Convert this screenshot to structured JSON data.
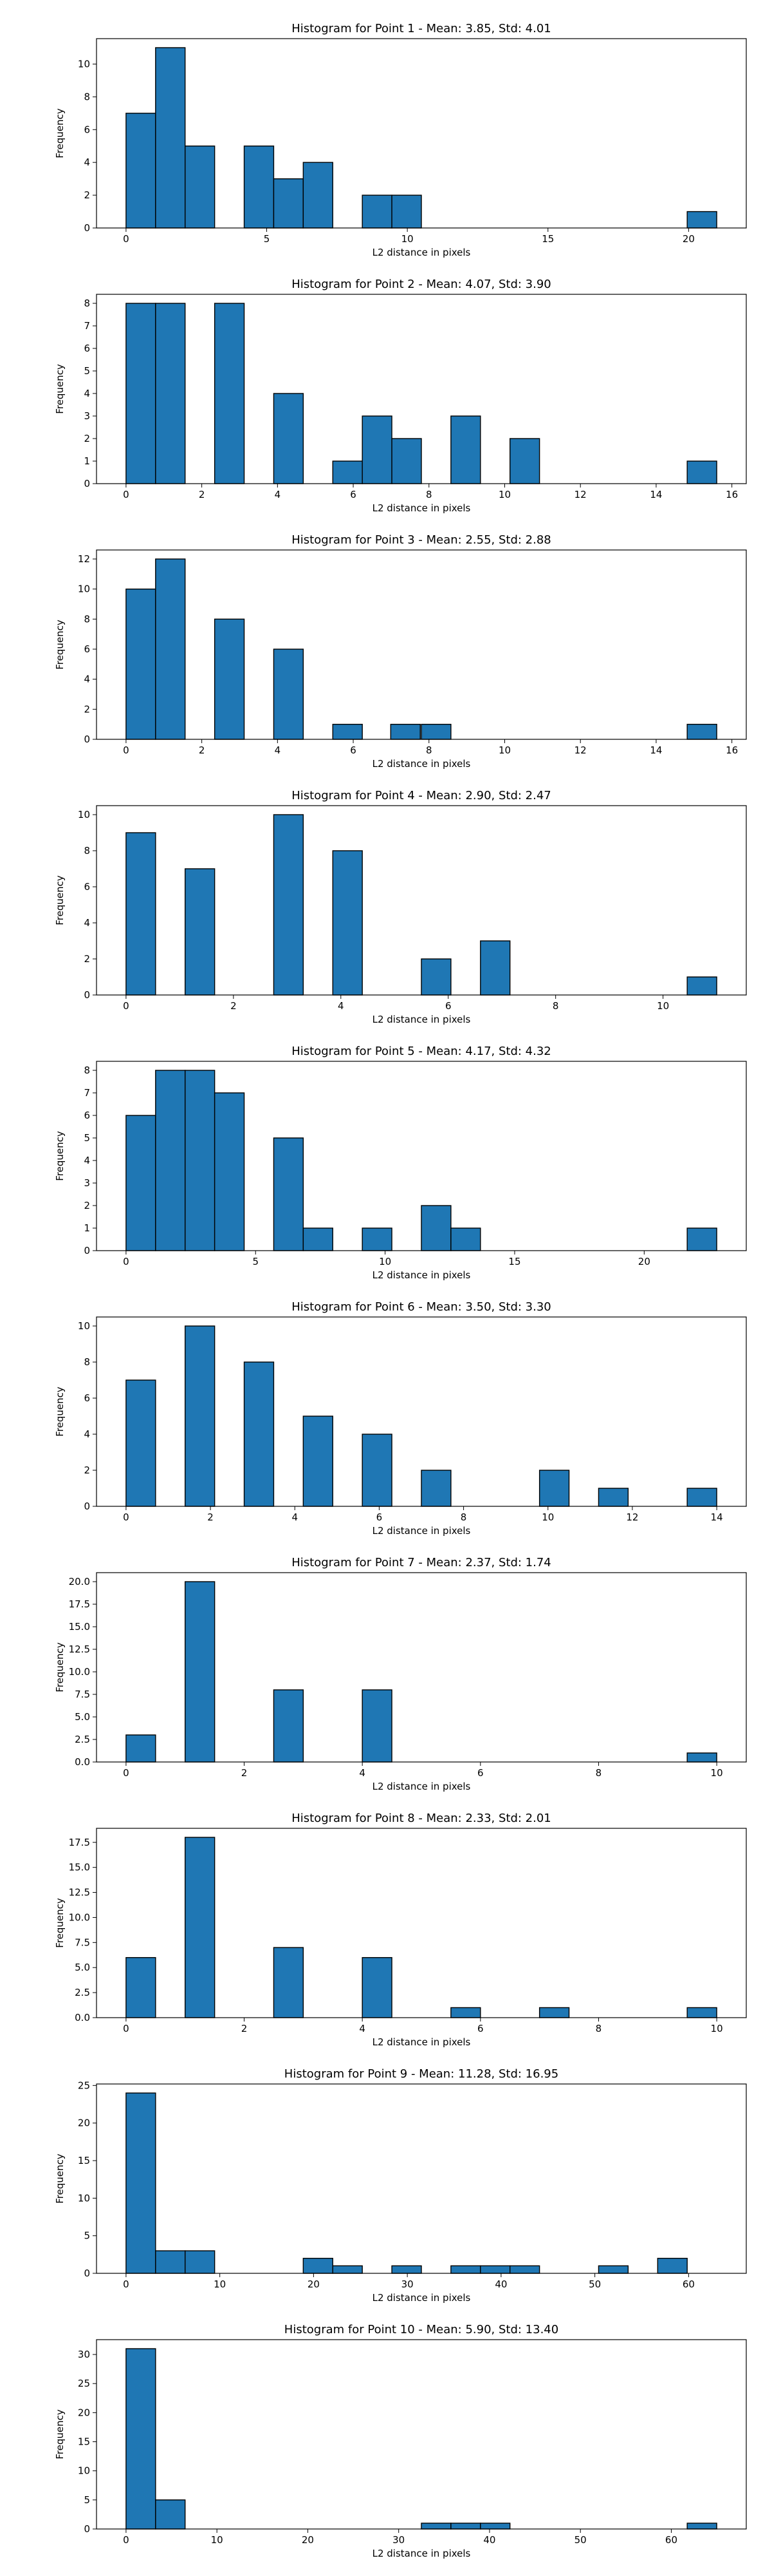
{
  "colors": {
    "bar_fill": "#1f77b4",
    "bar_edge": "#000000",
    "axis": "#000000",
    "background": "#ffffff"
  },
  "chart_data": [
    {
      "type": "bar",
      "title": "Histogram for Point 1 - Mean: 3.85, Std: 4.01",
      "xlabel": "L2 distance in pixels",
      "ylabel": "Frequency",
      "xlim": [
        -1.05,
        22.05
      ],
      "ylim": [
        0,
        11.55
      ],
      "grid": false,
      "bin_width": 1.05,
      "bin_starts": [
        0,
        1.05,
        2.1,
        4.2,
        5.25,
        6.3,
        8.4,
        9.45,
        19.95
      ],
      "values": [
        7,
        11,
        5,
        5,
        3,
        4,
        2,
        2,
        1
      ],
      "x_ticks": [
        0,
        5,
        10,
        15,
        20
      ],
      "x_tick_labels": [
        "0",
        "5",
        "10",
        "15",
        "20"
      ],
      "y_ticks": [
        0,
        2,
        4,
        6,
        8,
        10
      ],
      "y_tick_labels": [
        "0",
        "2",
        "4",
        "6",
        "8",
        "10"
      ]
    },
    {
      "type": "bar",
      "title": "Histogram for Point 2 - Mean: 4.07, Std: 3.90",
      "xlabel": "L2 distance in pixels",
      "ylabel": "Frequency",
      "xlim": [
        -0.78,
        16.38
      ],
      "ylim": [
        0,
        8.4
      ],
      "grid": false,
      "bin_width": 0.78,
      "bin_starts": [
        0,
        0.78,
        2.34,
        3.9,
        5.46,
        6.24,
        7.02,
        8.58,
        10.14,
        14.82
      ],
      "values": [
        8,
        8,
        8,
        4,
        1,
        3,
        2,
        3,
        2,
        1
      ],
      "x_ticks": [
        0,
        2,
        4,
        6,
        8,
        10,
        12,
        14,
        16
      ],
      "x_tick_labels": [
        "0",
        "2",
        "4",
        "6",
        "8",
        "10",
        "12",
        "14",
        "16"
      ],
      "y_ticks": [
        0,
        1,
        2,
        3,
        4,
        5,
        6,
        7,
        8
      ],
      "y_tick_labels": [
        "0",
        "1",
        "2",
        "3",
        "4",
        "5",
        "6",
        "7",
        "8"
      ]
    },
    {
      "type": "bar",
      "title": "Histogram for Point 3 - Mean: 2.55, Std: 2.88",
      "xlabel": "L2 distance in pixels",
      "ylabel": "Frequency",
      "xlim": [
        -0.78,
        16.38
      ],
      "ylim": [
        0,
        12.6
      ],
      "grid": false,
      "bin_width": 0.78,
      "bin_starts": [
        0,
        0.78,
        2.34,
        3.9,
        5.46,
        6.99,
        7.8,
        14.82
      ],
      "values": [
        10,
        12,
        8,
        6,
        1,
        1,
        1,
        1
      ],
      "x_ticks": [
        0,
        2,
        4,
        6,
        8,
        10,
        12,
        14,
        16
      ],
      "x_tick_labels": [
        "0",
        "2",
        "4",
        "6",
        "8",
        "10",
        "12",
        "14",
        "16"
      ],
      "y_ticks": [
        0,
        2,
        4,
        6,
        8,
        10,
        12
      ],
      "y_tick_labels": [
        "0",
        "2",
        "4",
        "6",
        "8",
        "10",
        "12"
      ]
    },
    {
      "type": "bar",
      "title": "Histogram for Point 4 - Mean: 2.90, Std: 2.47",
      "xlabel": "L2 distance in pixels",
      "ylabel": "Frequency",
      "xlim": [
        -0.55,
        11.55
      ],
      "ylim": [
        0,
        10.5
      ],
      "grid": false,
      "bin_width": 0.55,
      "bin_starts": [
        0,
        1.1,
        2.75,
        3.85,
        5.5,
        6.6,
        10.45
      ],
      "values": [
        9,
        7,
        10,
        8,
        2,
        3,
        1
      ],
      "x_ticks": [
        0,
        2,
        4,
        6,
        8,
        10
      ],
      "x_tick_labels": [
        "0",
        "2",
        "4",
        "6",
        "8",
        "10"
      ],
      "y_ticks": [
        0,
        2,
        4,
        6,
        8,
        10
      ],
      "y_tick_labels": [
        "0",
        "2",
        "4",
        "6",
        "8",
        "10"
      ]
    },
    {
      "type": "bar",
      "title": "Histogram for Point 5 - Mean: 4.17, Std: 4.32",
      "xlabel": "L2 distance in pixels",
      "ylabel": "Frequency",
      "xlim": [
        -1.14,
        23.94
      ],
      "ylim": [
        0,
        8.4
      ],
      "grid": false,
      "bin_width": 1.14,
      "bin_starts": [
        0,
        1.14,
        2.28,
        3.42,
        5.7,
        6.84,
        9.12,
        11.4,
        12.54,
        21.66
      ],
      "values": [
        6,
        8,
        8,
        7,
        5,
        1,
        1,
        2,
        1,
        1
      ],
      "x_ticks": [
        0,
        5,
        10,
        15,
        20
      ],
      "x_tick_labels": [
        "0",
        "5",
        "10",
        "15",
        "20"
      ],
      "y_ticks": [
        0,
        1,
        2,
        3,
        4,
        5,
        6,
        7,
        8
      ],
      "y_tick_labels": [
        "0",
        "1",
        "2",
        "3",
        "4",
        "5",
        "6",
        "7",
        "8"
      ]
    },
    {
      "type": "bar",
      "title": "Histogram for Point 6 - Mean: 3.50, Std: 3.30",
      "xlabel": "L2 distance in pixels",
      "ylabel": "Frequency",
      "xlim": [
        -0.7,
        14.7
      ],
      "ylim": [
        0,
        10.5
      ],
      "grid": false,
      "bin_width": 0.7,
      "bin_starts": [
        0,
        1.4,
        2.8,
        4.2,
        5.6,
        7,
        9.8,
        11.2,
        13.3
      ],
      "values": [
        7,
        10,
        8,
        5,
        4,
        2,
        2,
        1,
        1
      ],
      "x_ticks": [
        0,
        2,
        4,
        6,
        8,
        10,
        12,
        14
      ],
      "x_tick_labels": [
        "0",
        "2",
        "4",
        "6",
        "8",
        "10",
        "12",
        "14"
      ],
      "y_ticks": [
        0,
        2,
        4,
        6,
        8,
        10
      ],
      "y_tick_labels": [
        "0",
        "2",
        "4",
        "6",
        "8",
        "10"
      ]
    },
    {
      "type": "bar",
      "title": "Histogram for Point 7 - Mean: 2.37, Std: 1.74",
      "xlabel": "L2 distance in pixels",
      "ylabel": "Frequency",
      "xlim": [
        -0.5,
        10.5
      ],
      "ylim": [
        0,
        21
      ],
      "grid": false,
      "bin_width": 0.5,
      "bin_starts": [
        0,
        1,
        2.5,
        4,
        9.5
      ],
      "values": [
        3,
        20,
        8,
        8,
        1
      ],
      "x_ticks": [
        0,
        2,
        4,
        6,
        8,
        10
      ],
      "x_tick_labels": [
        "0",
        "2",
        "4",
        "6",
        "8",
        "10"
      ],
      "y_ticks": [
        0,
        2.5,
        5,
        7.5,
        10,
        12.5,
        15,
        17.5,
        20
      ],
      "y_tick_labels": [
        "0.0",
        "2.5",
        "5.0",
        "7.5",
        "10.0",
        "12.5",
        "15.0",
        "17.5",
        "20.0"
      ]
    },
    {
      "type": "bar",
      "title": "Histogram for Point 8 - Mean: 2.33, Std: 2.01",
      "xlabel": "L2 distance in pixels",
      "ylabel": "Frequency",
      "xlim": [
        -0.5,
        10.5
      ],
      "ylim": [
        0,
        18.9
      ],
      "grid": false,
      "bin_width": 0.5,
      "bin_starts": [
        0,
        1,
        2.5,
        4,
        5.5,
        7,
        9.5
      ],
      "values": [
        6,
        18,
        7,
        6,
        1,
        1,
        1
      ],
      "x_ticks": [
        0,
        2,
        4,
        6,
        8,
        10
      ],
      "x_tick_labels": [
        "0",
        "2",
        "4",
        "6",
        "8",
        "10"
      ],
      "y_ticks": [
        0,
        2.5,
        5,
        7.5,
        10,
        12.5,
        15,
        17.5
      ],
      "y_tick_labels": [
        "0.0",
        "2.5",
        "5.0",
        "7.5",
        "10.0",
        "12.5",
        "15.0",
        "17.5"
      ]
    },
    {
      "type": "bar",
      "title": "Histogram for Point 9 - Mean: 11.28, Std: 16.95",
      "xlabel": "L2 distance in pixels",
      "ylabel": "Frequency",
      "xlim": [
        -3.15,
        66.15
      ],
      "ylim": [
        0,
        25.2
      ],
      "grid": false,
      "bin_width": 3.15,
      "bin_starts": [
        0,
        3.15,
        6.3,
        18.9,
        22.05,
        28.35,
        34.65,
        37.8,
        40.95,
        50.4,
        56.7
      ],
      "values": [
        24,
        3,
        3,
        2,
        1,
        1,
        1,
        1,
        1,
        1,
        2
      ],
      "x_ticks": [
        0,
        10,
        20,
        30,
        40,
        50,
        60
      ],
      "x_tick_labels": [
        "0",
        "10",
        "20",
        "30",
        "40",
        "50",
        "60"
      ],
      "y_ticks": [
        0,
        5,
        10,
        15,
        20,
        25
      ],
      "y_tick_labels": [
        "0",
        "5",
        "10",
        "15",
        "20",
        "25"
      ]
    },
    {
      "type": "bar",
      "title": "Histogram for Point 10 - Mean: 5.90, Std: 13.40",
      "xlabel": "L2 distance in pixels",
      "ylabel": "Frequency",
      "xlim": [
        -3.25,
        68.25
      ],
      "ylim": [
        0,
        32.55
      ],
      "grid": false,
      "bin_width": 3.25,
      "bin_starts": [
        0,
        3.25,
        32.5,
        35.75,
        39,
        61.75
      ],
      "values": [
        31,
        5,
        1,
        1,
        1,
        1
      ],
      "x_ticks": [
        0,
        10,
        20,
        30,
        40,
        50,
        60
      ],
      "x_tick_labels": [
        "0",
        "10",
        "20",
        "30",
        "40",
        "50",
        "60"
      ],
      "y_ticks": [
        0,
        5,
        10,
        15,
        20,
        25,
        30
      ],
      "y_tick_labels": [
        "0",
        "5",
        "10",
        "15",
        "20",
        "25",
        "30"
      ]
    }
  ]
}
